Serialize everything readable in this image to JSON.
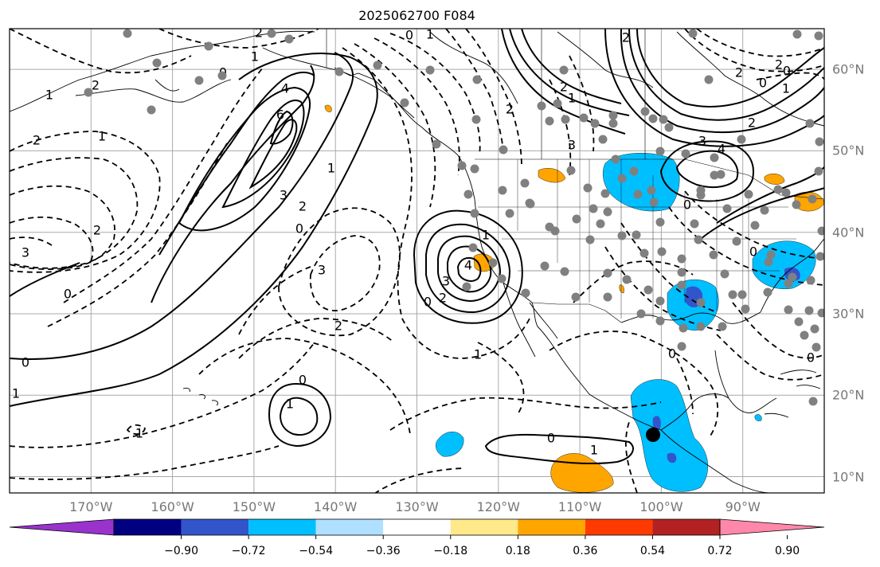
{
  "title": "2025062700 F084",
  "map": {
    "lon_labels": [
      {
        "text": "170°W",
        "lon": -170
      },
      {
        "text": "160°W",
        "lon": -160
      },
      {
        "text": "150°W",
        "lon": -150
      },
      {
        "text": "140°W",
        "lon": -140
      },
      {
        "text": "130°W",
        "lon": -130
      },
      {
        "text": "120°W",
        "lon": -120
      },
      {
        "text": "110°W",
        "lon": -110
      },
      {
        "text": "100°W",
        "lon": -100
      },
      {
        "text": "90°W",
        "lon": -90
      }
    ],
    "lat_labels": [
      {
        "text": "60°N",
        "lat": 60
      },
      {
        "text": "50°N",
        "lat": 50
      },
      {
        "text": "40°N",
        "lat": 40
      },
      {
        "text": "30°N",
        "lat": 30
      },
      {
        "text": "20°N",
        "lat": 20
      },
      {
        "text": "10°N",
        "lat": 10
      }
    ],
    "lon_range": [
      -180,
      -80
    ],
    "lat_range": [
      8,
      65
    ],
    "grid": true,
    "contour_color": "#000000",
    "coast_color": "#000000",
    "station_color": "#808080",
    "marker_color": "#000000"
  },
  "colorbar": {
    "colors": [
      "#9933cc",
      "#000080",
      "#3355cc",
      "#00bfff",
      "#b0e0ff",
      "#ffffff",
      "#ffe98a",
      "#ffa500",
      "#ff3a00",
      "#b22222",
      "#ff88aa"
    ],
    "tick_labels": [
      "−0.90",
      "−0.72",
      "−0.54",
      "−0.36",
      "−0.18",
      "0.18",
      "0.36",
      "0.54",
      "0.72",
      "0.90"
    ]
  }
}
